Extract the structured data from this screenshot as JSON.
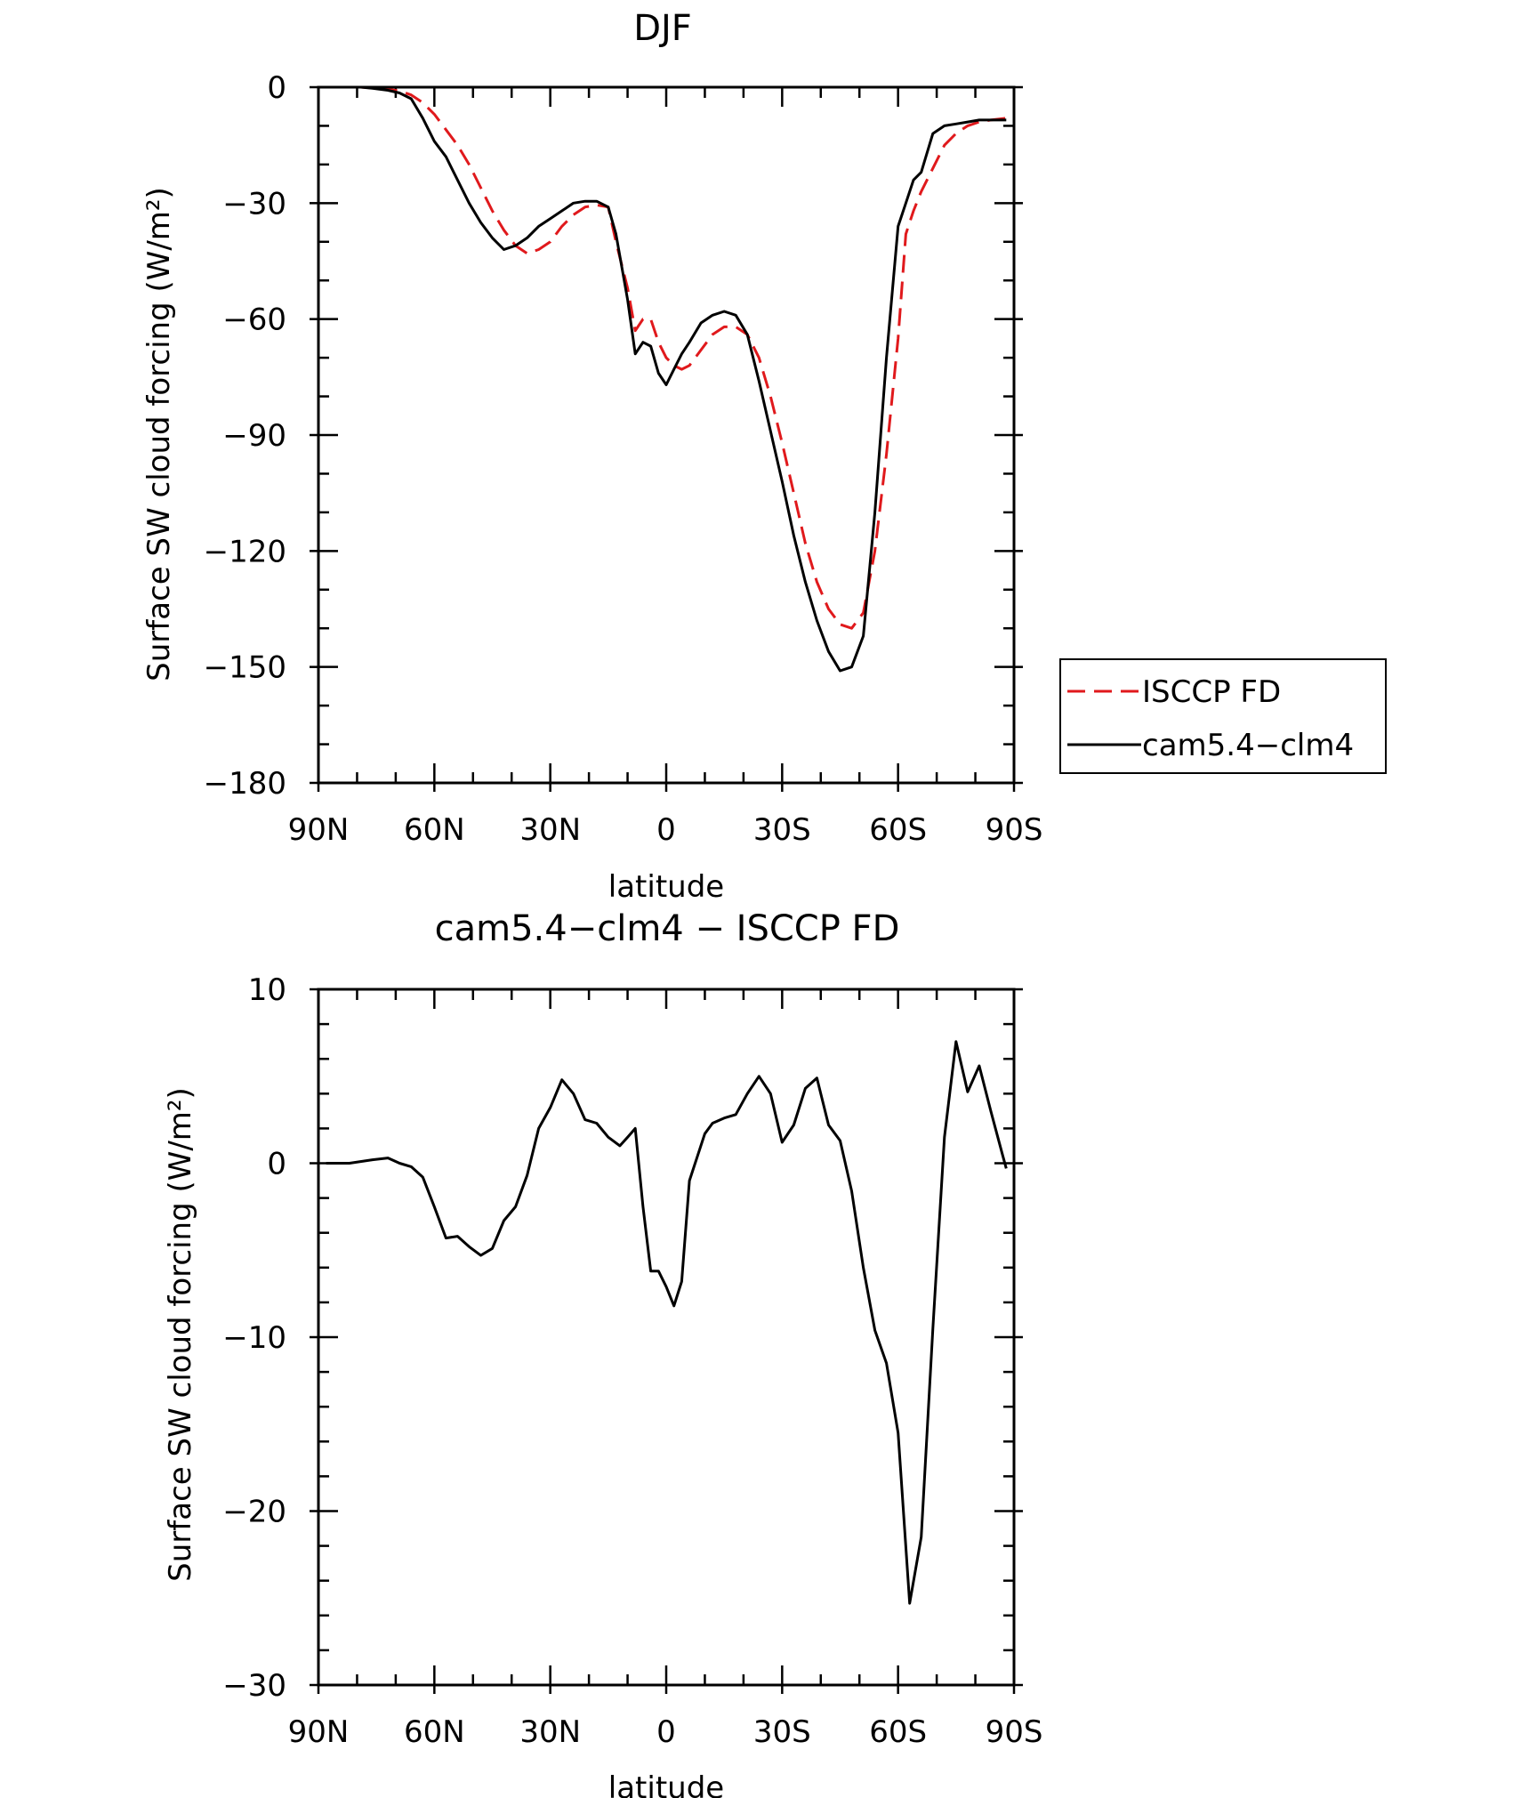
{
  "colors": {
    "isccp": "#e0191c",
    "model": "#000000"
  },
  "chart_data": [
    {
      "type": "line",
      "title": "DJF",
      "xlabel": "latitude",
      "ylabel": "Surface SW cloud forcing (W/m²)",
      "xlim": [
        90,
        -90
      ],
      "ylim": [
        -180,
        0
      ],
      "xticks": [
        {
          "value": 90,
          "label": "90N"
        },
        {
          "value": 60,
          "label": "60N"
        },
        {
          "value": 30,
          "label": "30N"
        },
        {
          "value": 0,
          "label": "0"
        },
        {
          "value": -30,
          "label": "30S"
        },
        {
          "value": -60,
          "label": "60S"
        },
        {
          "value": -90,
          "label": "90S"
        }
      ],
      "yticks": [
        {
          "value": 0,
          "label": "0"
        },
        {
          "value": -30,
          "label": "−30"
        },
        {
          "value": -60,
          "label": "−60"
        },
        {
          "value": -90,
          "label": "−90"
        },
        {
          "value": -120,
          "label": "−120"
        },
        {
          "value": -150,
          "label": "−150"
        },
        {
          "value": -180,
          "label": "−180"
        }
      ],
      "legend_position": "right",
      "series": [
        {
          "name": "ISCCP FD",
          "style": "dashed",
          "color_key": "isccp",
          "x": [
            88,
            85,
            82,
            79,
            76,
            72,
            69,
            66,
            63,
            60,
            57,
            54,
            51,
            48,
            45,
            42,
            39,
            36,
            33,
            30,
            27,
            24,
            21,
            18,
            15,
            13,
            10,
            8,
            6,
            4,
            2,
            0,
            -2,
            -4,
            -6,
            -9,
            -12,
            -15,
            -18,
            -21,
            -24,
            -27,
            -30,
            -33,
            -36,
            -39,
            -42,
            -45,
            -48,
            -51,
            -54,
            -57,
            -60,
            -62,
            -64,
            -66,
            -69,
            -72,
            -75,
            -78,
            -81,
            -84,
            -88
          ],
          "y": [
            0,
            0,
            0,
            0,
            -0.2,
            -0.5,
            -1,
            -2,
            -4,
            -7,
            -11,
            -15,
            -20,
            -26,
            -32,
            -37,
            -41,
            -43,
            -42,
            -40,
            -36,
            -33,
            -31,
            -30.5,
            -31,
            -40,
            -52,
            -63,
            -60,
            -60,
            -66,
            -70,
            -72,
            -73,
            -72,
            -68,
            -64,
            -62,
            -62,
            -64,
            -70,
            -80,
            -92,
            -105,
            -118,
            -128,
            -135,
            -139,
            -140,
            -136,
            -120,
            -95,
            -65,
            -38,
            -32,
            -27,
            -21,
            -15,
            -12,
            -10,
            -9,
            -8.5,
            -8
          ]
        },
        {
          "name": "cam5.4−clm4",
          "style": "solid",
          "color_key": "model",
          "x": [
            88,
            85,
            82,
            79,
            76,
            72,
            69,
            66,
            63,
            60,
            57,
            54,
            51,
            48,
            45,
            42,
            39,
            36,
            33,
            30,
            27,
            24,
            21,
            18,
            15,
            13,
            10,
            8,
            6,
            4,
            2,
            0,
            -2,
            -4,
            -6,
            -9,
            -12,
            -15,
            -18,
            -21,
            -24,
            -27,
            -30,
            -33,
            -36,
            -39,
            -42,
            -45,
            -48,
            -51,
            -54,
            -57,
            -60,
            -62,
            -64,
            -66,
            -69,
            -72,
            -75,
            -78,
            -81,
            -84,
            -88
          ],
          "y": [
            0,
            0,
            0,
            0,
            -0.3,
            -0.8,
            -1.5,
            -3,
            -8,
            -14,
            -18,
            -24,
            -30,
            -35,
            -39,
            -42,
            -41,
            -39,
            -36,
            -34,
            -32,
            -30,
            -29.5,
            -29.5,
            -31,
            -38,
            -55,
            -69,
            -66,
            -67,
            -74,
            -77,
            -73,
            -69,
            -66,
            -61,
            -59,
            -58,
            -59,
            -64,
            -76,
            -89,
            -102,
            -116,
            -128,
            -138,
            -146,
            -151,
            -150,
            -142,
            -110,
            -70,
            -36,
            -30,
            -24,
            -22,
            -12,
            -10,
            -9.5,
            -9,
            -8.5,
            -8.5,
            -8.5
          ]
        }
      ]
    },
    {
      "type": "line",
      "title": "cam5.4−clm4 − ISCCP FD",
      "xlabel": "latitude",
      "ylabel": "Surface SW cloud forcing (W/m²)",
      "xlim": [
        90,
        -90
      ],
      "ylim": [
        -30,
        10
      ],
      "xticks": [
        {
          "value": 90,
          "label": "90N"
        },
        {
          "value": 60,
          "label": "60N"
        },
        {
          "value": 30,
          "label": "30N"
        },
        {
          "value": 0,
          "label": "0"
        },
        {
          "value": -30,
          "label": "30S"
        },
        {
          "value": -60,
          "label": "60S"
        },
        {
          "value": -90,
          "label": "90S"
        }
      ],
      "yticks": [
        {
          "value": 10,
          "label": "10"
        },
        {
          "value": 0,
          "label": "0"
        },
        {
          "value": -10,
          "label": "−10"
        },
        {
          "value": -20,
          "label": "−20"
        },
        {
          "value": -30,
          "label": "−30"
        }
      ],
      "series": [
        {
          "style": "solid",
          "color_key": "model",
          "x": [
            88,
            82,
            76,
            72,
            69,
            66,
            63,
            60,
            57,
            54,
            51,
            48,
            45,
            42,
            39,
            36,
            33,
            30,
            27,
            24,
            21,
            18,
            15,
            12,
            10,
            8,
            6,
            4,
            2,
            0,
            -2,
            -4,
            -6,
            -10,
            -12,
            -15,
            -18,
            -21,
            -24,
            -27,
            -30,
            -33,
            -36,
            -39,
            -42,
            -45,
            -48,
            -51,
            -54,
            -57,
            -60,
            -63,
            -66,
            -69,
            -72,
            -75,
            -78,
            -81,
            -84,
            -87,
            -88
          ],
          "y": [
            0,
            0,
            0.2,
            0.3,
            0,
            -0.2,
            -0.8,
            -2.5,
            -4.3,
            -4.2,
            -4.8,
            -5.3,
            -4.9,
            -3.3,
            -2.5,
            -0.7,
            2,
            3.2,
            4.8,
            4,
            2.5,
            2.3,
            1.5,
            1,
            1.5,
            2,
            -2.5,
            -6.2,
            -6.2,
            -7.1,
            -8.2,
            -6.8,
            -1,
            1.7,
            2.3,
            2.6,
            2.8,
            4,
            5,
            4,
            1.2,
            2.2,
            4.3,
            4.9,
            2.2,
            1.3,
            -1.6,
            -6,
            -9.6,
            -11.5,
            -15.5,
            -25.3,
            -21.5,
            -9.5,
            1.5,
            7,
            4.1,
            5.6,
            3,
            0.5,
            -0.3
          ]
        }
      ]
    }
  ]
}
